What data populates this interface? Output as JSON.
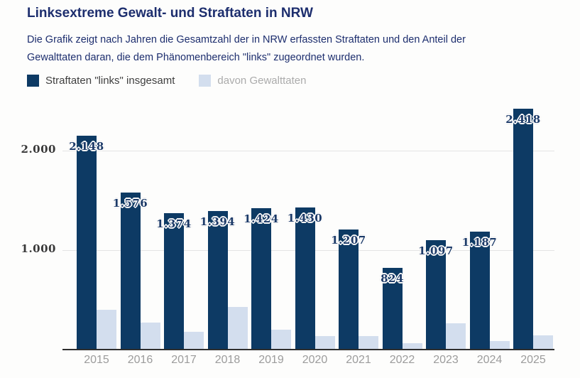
{
  "title": "Linksextreme Gewalt- und Straftaten in NRW",
  "description": {
    "line1": "Die Grafik zeigt nach Jahren die Gesamtzahl der in NRW erfassten Straftaten und den Anteil der",
    "line2": "Gewalttaten daran, die dem Phänomenbereich \"links\" zugeordnet wurden."
  },
  "legend": [
    {
      "label": "Straftaten \"links\" insgesamt",
      "color": "#0d3a64",
      "text_color": "#3f3f3f"
    },
    {
      "label": "davon Gewalttaten",
      "color": "#d3deee",
      "text_color": "#ababab"
    }
  ],
  "colors": {
    "background": "#fdfdfc",
    "heading": "#1d2e6e",
    "bar_total": "#0d3a64",
    "bar_violent": "#d3deee",
    "gridline": "#e4e4e4",
    "axis_line": "#2e2e2e",
    "ytick_label": "#383838",
    "xtick_label": "#9c9c9c",
    "data_label": "#1c3a68"
  },
  "chart_data": {
    "type": "bar",
    "title": "Linksextreme Gewalt- und Straftaten in NRW",
    "categories": [
      "2015",
      "2016",
      "2017",
      "2018",
      "2019",
      "2020",
      "2021",
      "2022",
      "2023",
      "2024",
      "2025"
    ],
    "series": [
      {
        "name": "Straftaten \"links\" insgesamt",
        "color": "#0d3a64",
        "values": [
          2148,
          1576,
          1374,
          1394,
          1424,
          1430,
          1207,
          824,
          1097,
          1187,
          2418
        ],
        "labels": [
          "2.148",
          "1.576",
          "1.374",
          "1.394",
          "1.424",
          "1.430",
          "1.207",
          "824",
          "1.097",
          "1.187",
          "2.418"
        ]
      },
      {
        "name": "davon Gewalttaten",
        "color": "#d3deee",
        "values": [
          400,
          270,
          180,
          430,
          198,
          134,
          138,
          62,
          266,
          84,
          145
        ],
        "values_estimated_from_pixels": true,
        "labels": []
      }
    ],
    "yticks": [
      {
        "value": 1000,
        "label": "1.000"
      },
      {
        "value": 2000,
        "label": "2.000"
      }
    ],
    "ylim": [
      0,
      2443
    ],
    "xlabel": "",
    "ylabel": "",
    "grid": "horizontal",
    "legend_position": "top-left",
    "data_labels_on": "series 'Straftaten links insgesamt' only, placed at bar tops"
  }
}
